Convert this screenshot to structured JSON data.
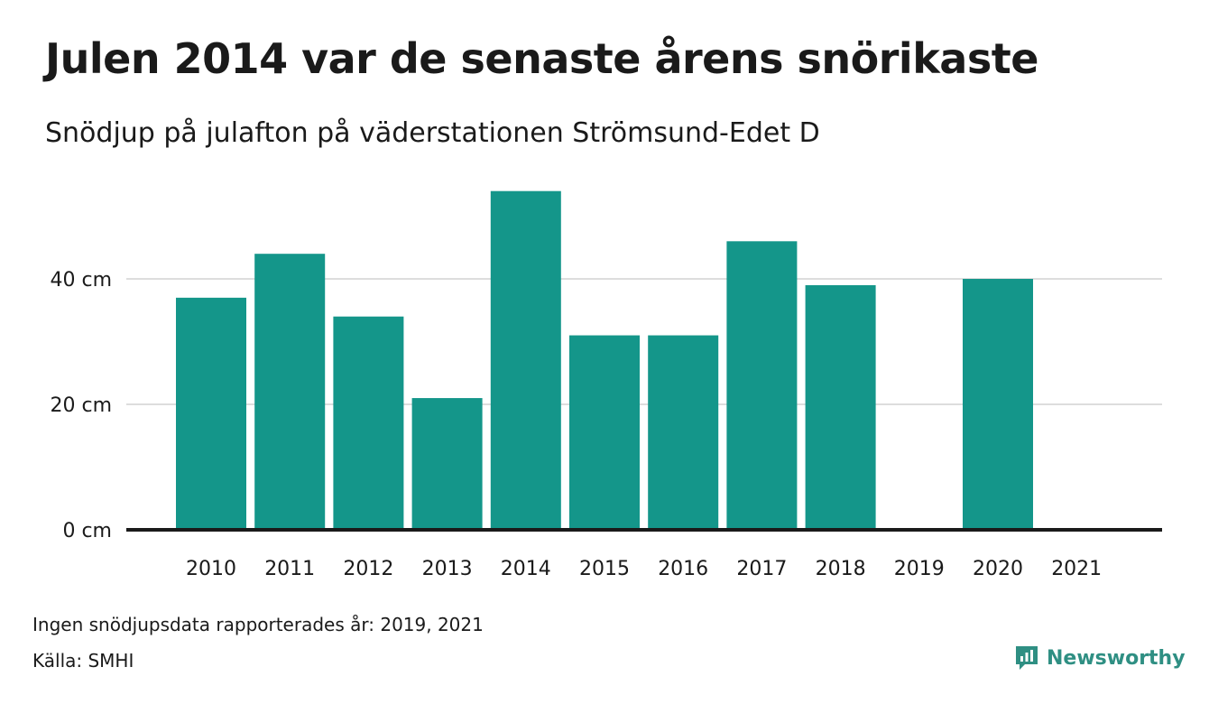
{
  "header": {
    "title": "Julen 2014 var de senaste årens snörikaste",
    "subtitle": "Snödjup på julafton på väderstationen Strömsund-Edet D"
  },
  "chart_data": {
    "type": "bar",
    "title": "Julen 2014 var de senaste årens snörikaste",
    "subtitle": "Snödjup på julafton på väderstationen Strömsund-Edet D",
    "categories": [
      "2010",
      "2011",
      "2012",
      "2013",
      "2014",
      "2015",
      "2016",
      "2017",
      "2018",
      "2019",
      "2020",
      "2021"
    ],
    "values": [
      37,
      44,
      34,
      21,
      54,
      31,
      31,
      46,
      39,
      null,
      40,
      null
    ],
    "y_ticks": [
      {
        "value": 0,
        "label": "0 cm"
      },
      {
        "value": 20,
        "label": "20 cm"
      },
      {
        "value": 40,
        "label": "40 cm"
      }
    ],
    "ylim": [
      0,
      56
    ],
    "grid": true,
    "bar_color": "#14968a",
    "xlabel": "",
    "ylabel": ""
  },
  "footer": {
    "note": "Ingen snödjupsdata rapporterades år: 2019, 2021",
    "source": "Källa: SMHI",
    "brand": "Newsworthy",
    "brand_icon": "newsworthy-logo-icon",
    "brand_color": "#2f8f83"
  }
}
